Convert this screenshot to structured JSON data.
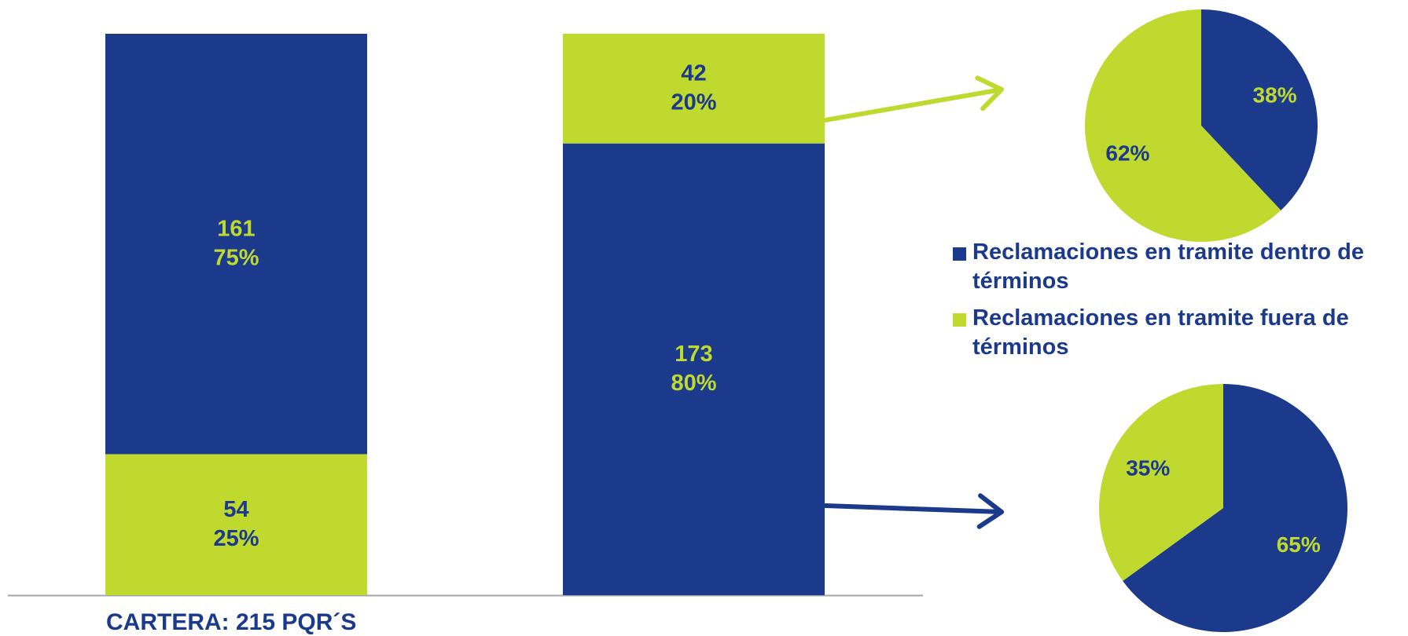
{
  "colors": {
    "blue": "#1b3a8c",
    "green": "#bfd92e",
    "axis": "#a6a6a6"
  },
  "caption": "CARTERA: 215 PQR´S",
  "chart_data": [
    {
      "type": "bar",
      "stacked": true,
      "categories": [
        "",
        ""
      ],
      "series": [
        {
          "color": "#bfd92e",
          "values": [
            54,
            42
          ],
          "percent_labels": [
            "25%",
            "20%"
          ],
          "stack_position": [
            "bottom",
            "top"
          ]
        },
        {
          "color": "#1b3a8c",
          "values": [
            161,
            173
          ],
          "percent_labels": [
            "75%",
            "80%"
          ],
          "stack_position": [
            "top",
            "bottom"
          ]
        }
      ],
      "total": 215,
      "ylim": [
        0,
        215
      ]
    },
    {
      "type": "pie",
      "slices": [
        {
          "label": "38%",
          "value": 38,
          "color": "#1b3a8c",
          "series": "Reclamaciones en tramite dentro de términos"
        },
        {
          "label": "62%",
          "value": 62,
          "color": "#bfd92e",
          "series": "Reclamaciones en tramite fuera de términos"
        }
      ]
    },
    {
      "type": "pie",
      "slices": [
        {
          "label": "65%",
          "value": 65,
          "color": "#1b3a8c",
          "series": "Reclamaciones en tramite dentro de términos"
        },
        {
          "label": "35%",
          "value": 35,
          "color": "#bfd92e",
          "series": "Reclamaciones en tramite fuera de términos"
        }
      ]
    }
  ],
  "legend": {
    "items": [
      {
        "label": "Reclamaciones en tramite dentro de términos",
        "color": "#1b3a8c"
      },
      {
        "label": "Reclamaciones en tramite fuera de términos",
        "color": "#bfd92e"
      }
    ]
  }
}
